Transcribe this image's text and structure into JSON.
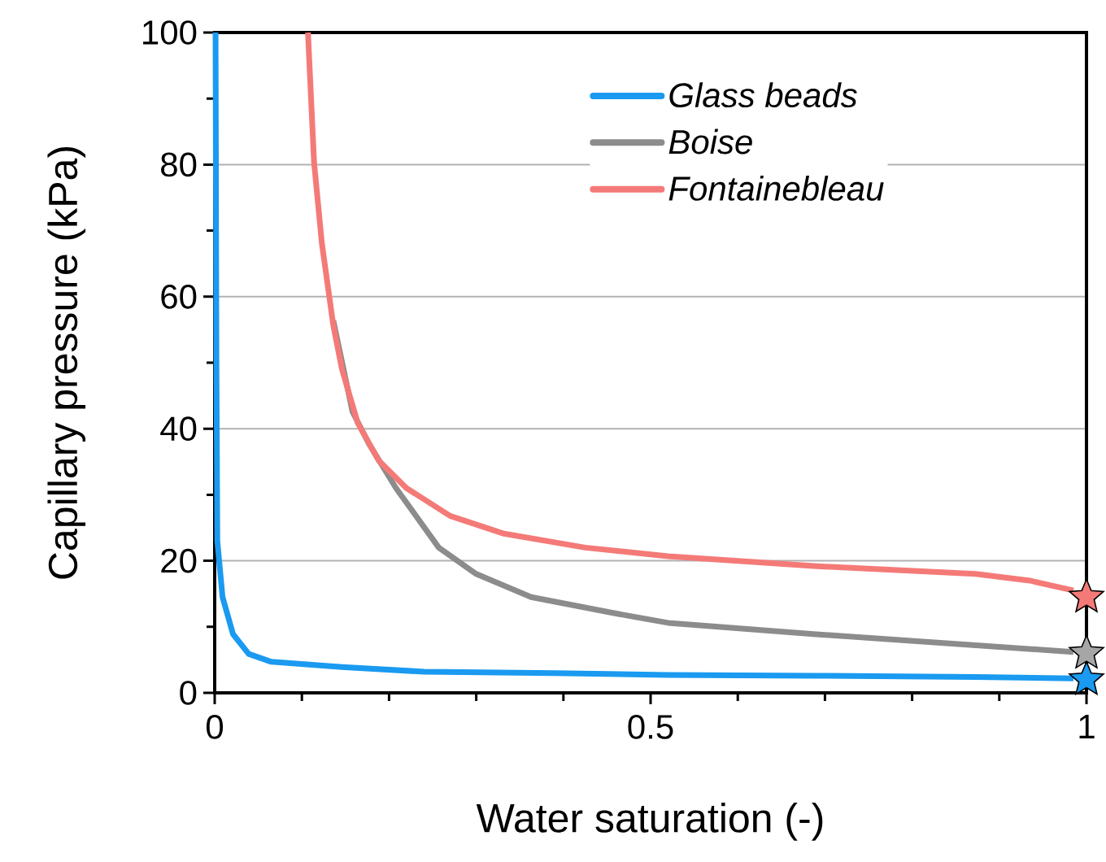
{
  "chart_data": {
    "type": "line",
    "xlabel": "Water saturation (-)",
    "ylabel": "Capillary pressure (kPa)",
    "xlim": [
      0,
      1
    ],
    "ylim": [
      0,
      100
    ],
    "xticks": [
      0,
      {
        "value": 0.1,
        "label": null
      },
      {
        "value": 0.2,
        "label": null
      },
      {
        "value": 0.3,
        "label": null
      },
      {
        "value": 0.4,
        "label": null
      },
      0.5,
      {
        "value": 0.6,
        "label": null
      },
      {
        "value": 0.7,
        "label": null
      },
      {
        "value": 0.8,
        "label": null
      },
      {
        "value": 0.9,
        "label": null
      },
      1
    ],
    "yticks": [
      0,
      {
        "value": 10,
        "label": null
      },
      20,
      {
        "value": 30,
        "label": null
      },
      40,
      {
        "value": 50,
        "label": null
      },
      60,
      {
        "value": 70,
        "label": null
      },
      80,
      {
        "value": 90,
        "label": null
      },
      100
    ],
    "grid": "y",
    "legend": "top right",
    "line_style": "solid",
    "series": [
      {
        "name": "Glass beads",
        "color": "#1a9af0",
        "x": [
          0.001,
          0.002,
          0.003,
          0.009,
          0.021,
          0.039,
          0.065,
          0.146,
          0.24,
          0.39,
          0.52,
          0.687,
          0.873,
          0.985
        ],
        "values": [
          100,
          50,
          23,
          14.5,
          8.9,
          5.9,
          4.7,
          3.9,
          3.2,
          3.0,
          2.7,
          2.6,
          2.4,
          2.2
        ]
      },
      {
        "name": "Boise",
        "color": "#8c8c8c",
        "x": [
          0.136,
          0.158,
          0.177,
          0.208,
          0.257,
          0.3,
          0.363,
          0.457,
          0.52,
          0.687,
          0.873,
          0.985
        ],
        "values": [
          56.4,
          42.6,
          37.7,
          31,
          22,
          18,
          14.5,
          12.1,
          10.6,
          8.9,
          7.2,
          6.2
        ]
      },
      {
        "name": "Fontainebleau",
        "color": "#f47a78",
        "x": [
          0.107,
          0.114,
          0.123,
          0.136,
          0.146,
          0.164,
          0.188,
          0.22,
          0.27,
          0.332,
          0.425,
          0.52,
          0.687,
          0.873,
          0.935,
          0.985
        ],
        "values": [
          100,
          80.3,
          68,
          55.7,
          49,
          40.9,
          35.2,
          31,
          26.8,
          24.1,
          22,
          20.7,
          19.2,
          18,
          17,
          15.5
        ]
      },
      {
        "type": "scatter",
        "marker": "star",
        "color": "#1a9af0",
        "x": [
          1
        ],
        "values": [
          2
        ]
      },
      {
        "type": "scatter",
        "marker": "star",
        "color": "#a6a6a6",
        "x": [
          1
        ],
        "values": [
          6
        ]
      },
      {
        "type": "scatter",
        "marker": "star",
        "color": "#f47a78",
        "x": [
          1
        ],
        "values": [
          14.5
        ]
      }
    ]
  }
}
